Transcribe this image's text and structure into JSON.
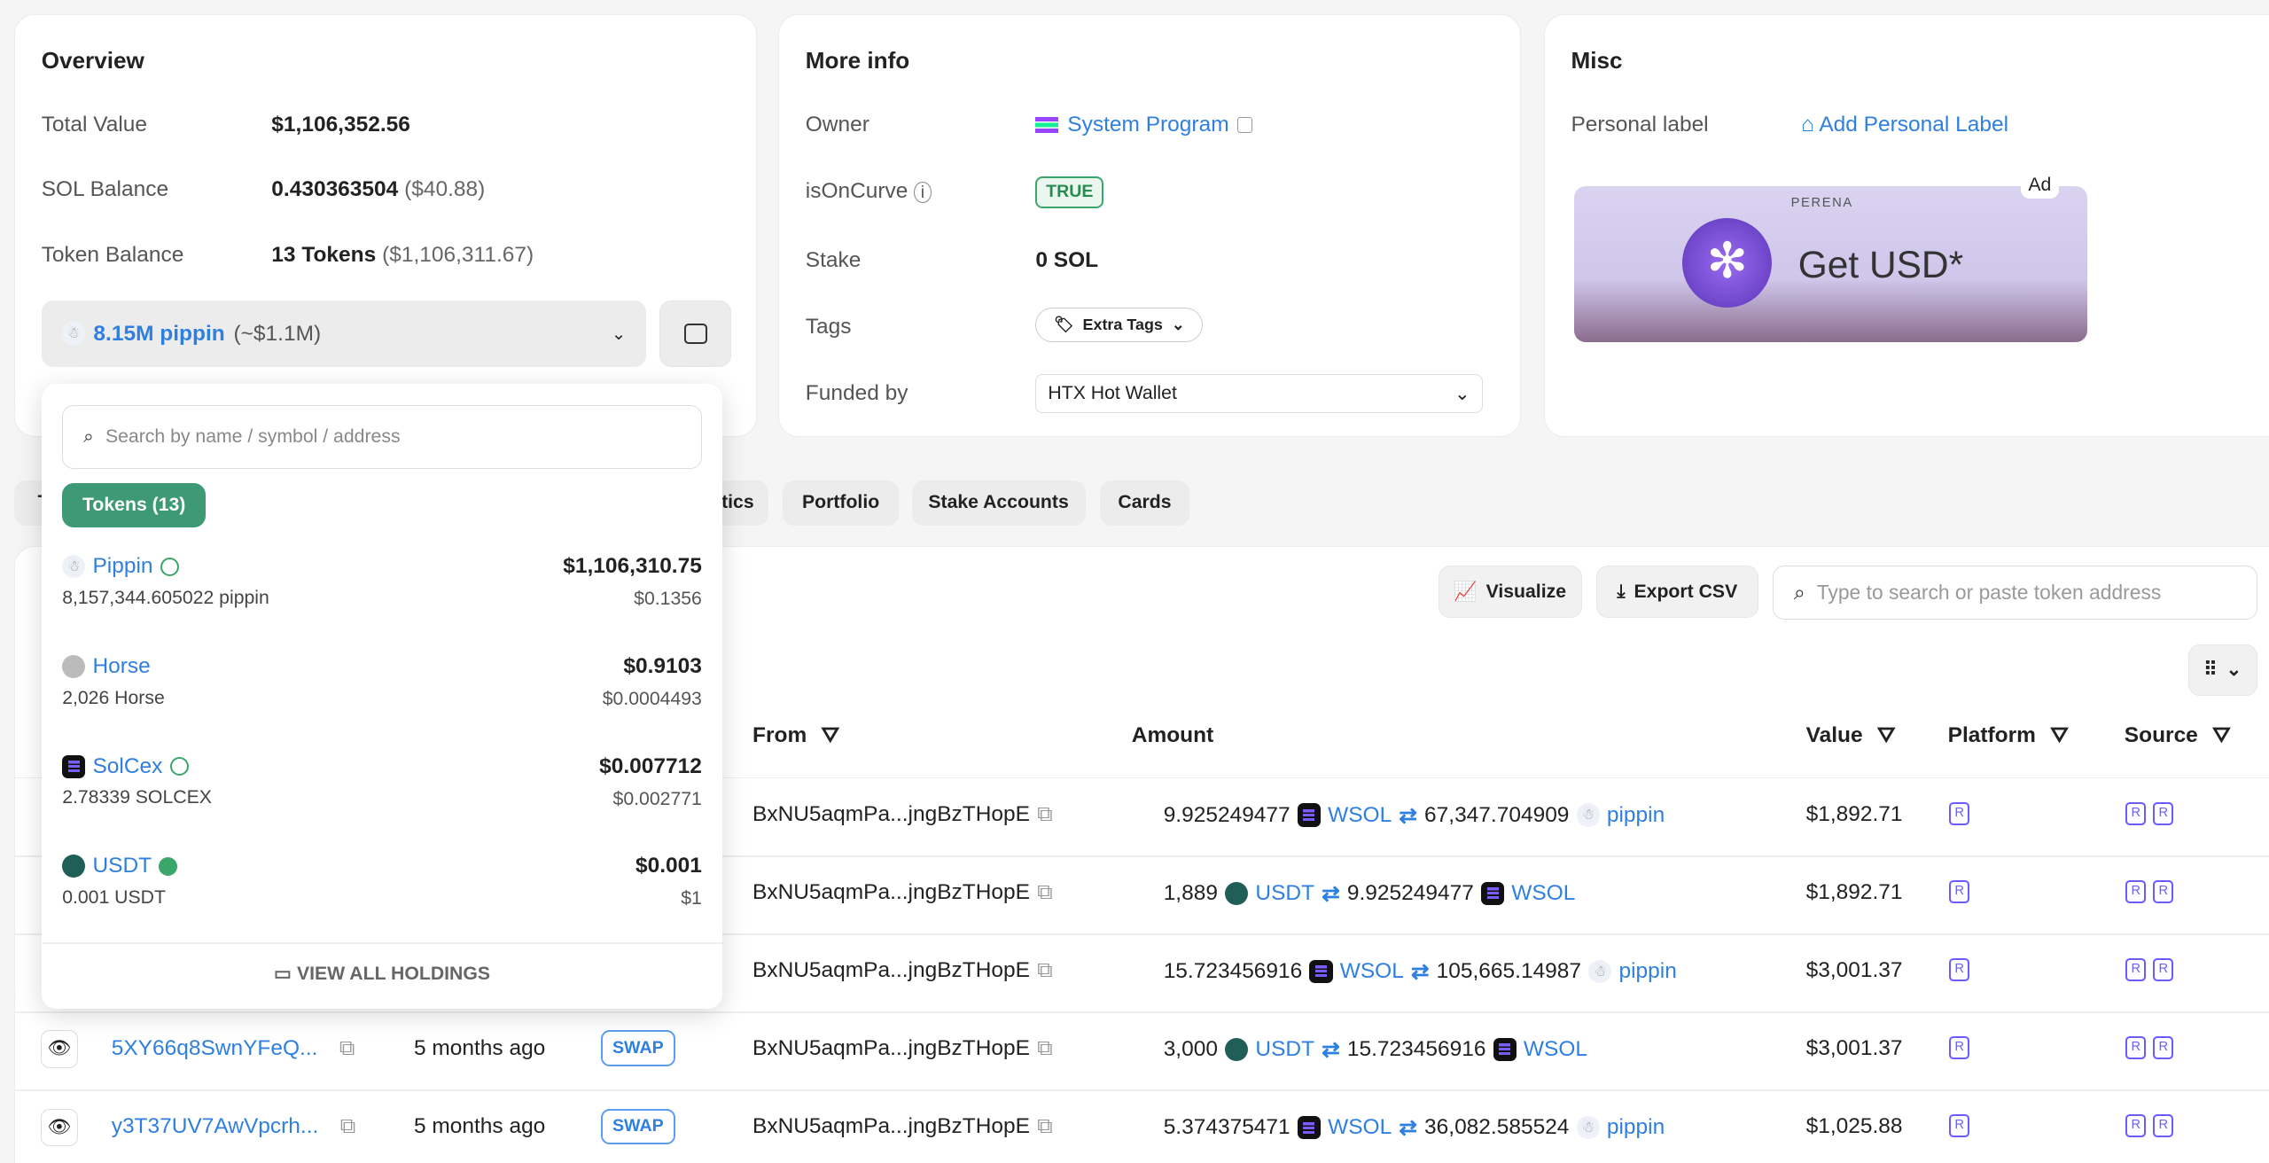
{
  "overview": {
    "title": "Overview",
    "total_value_label": "Total Value",
    "total_value": "$1,106,352.56",
    "sol_label": "SOL Balance",
    "sol": "0.430363504",
    "sol_usd": "($40.88)",
    "token_label": "Token Balance",
    "token_count": "13 Tokens",
    "token_usd": "($1,106,311.67)",
    "selector_amount": "8.15M pippin",
    "selector_usd": "(~$1.1M)"
  },
  "more_info": {
    "title": "More info",
    "owner_label": "Owner",
    "owner": "System Program",
    "oncurve_label": "isOnCurve",
    "oncurve": "TRUE",
    "stake_label": "Stake",
    "stake": "0 SOL",
    "tags_label": "Tags",
    "tags": "Extra Tags",
    "funded_label": "Funded by",
    "funded": "HTX Hot Wallet"
  },
  "misc": {
    "title": "Misc",
    "personal_label": "Personal label",
    "add_label": "Add Personal Label",
    "ad_badge": "Ad",
    "ad_brand": "PERENA",
    "ad_text": "Get USD*"
  },
  "tabs": [
    "T",
    "Analytics",
    "Portfolio",
    "Stake Accounts",
    "Cards"
  ],
  "toolbar": {
    "visualize": "Visualize",
    "export": "Export CSV",
    "search_placeholder": "Type to search or paste token address"
  },
  "dropdown": {
    "search_placeholder": "Search by name / symbol / address",
    "tokens_tab": "Tokens (13)",
    "view_all": "VIEW ALL HOLDINGS",
    "tokens": [
      {
        "name": "Pippin",
        "amount": "8,157,344.605022 pippin",
        "value": "$1,106,310.75",
        "price": "$0.1356"
      },
      {
        "name": "Horse",
        "amount": "2,026 Horse",
        "value": "$0.9103",
        "price": "$0.0004493"
      },
      {
        "name": "SolCex",
        "amount": "2.78339 SOLCEX",
        "value": "$0.007712",
        "price": "$0.002771"
      },
      {
        "name": "USDT",
        "amount": "0.001 USDT",
        "value": "$0.001",
        "price": "$1"
      }
    ]
  },
  "table": {
    "headers": {
      "from": "From",
      "amount": "Amount",
      "value": "Value",
      "platform": "Platform",
      "source": "Source"
    },
    "rows": [
      {
        "sig": "",
        "time": "",
        "type": "",
        "from": "BxNU5aqmPa...jngBzTHopE",
        "a1": "9.925249477",
        "t1": "WSOL",
        "a2": "67,347.704909",
        "t2": "pippin",
        "value": "$1,892.71"
      },
      {
        "sig": "",
        "time": "",
        "type": "",
        "from": "BxNU5aqmPa...jngBzTHopE",
        "a1": "1,889",
        "t1": "USDT",
        "a2": "9.925249477",
        "t2": "WSOL",
        "value": "$1,892.71"
      },
      {
        "sig": "",
        "time": "",
        "type": "",
        "from": "BxNU5aqmPa...jngBzTHopE",
        "a1": "15.723456916",
        "t1": "WSOL",
        "a2": "105,665.14987",
        "t2": "pippin",
        "value": "$3,001.37"
      },
      {
        "sig": "5XY66q8SwnYFeQ...",
        "time": "5 months ago",
        "type": "SWAP",
        "from": "BxNU5aqmPa...jngBzTHopE",
        "a1": "3,000",
        "t1": "USDT",
        "a2": "15.723456916",
        "t2": "WSOL",
        "value": "$3,001.37"
      },
      {
        "sig": "y3T37UV7AwVpcrh...",
        "time": "5 months ago",
        "type": "SWAP",
        "from": "BxNU5aqmPa...jngBzTHopE",
        "a1": "5.374375471",
        "t1": "WSOL",
        "a2": "36,082.585524",
        "t2": "pippin",
        "value": "$1,025.88"
      }
    ]
  }
}
